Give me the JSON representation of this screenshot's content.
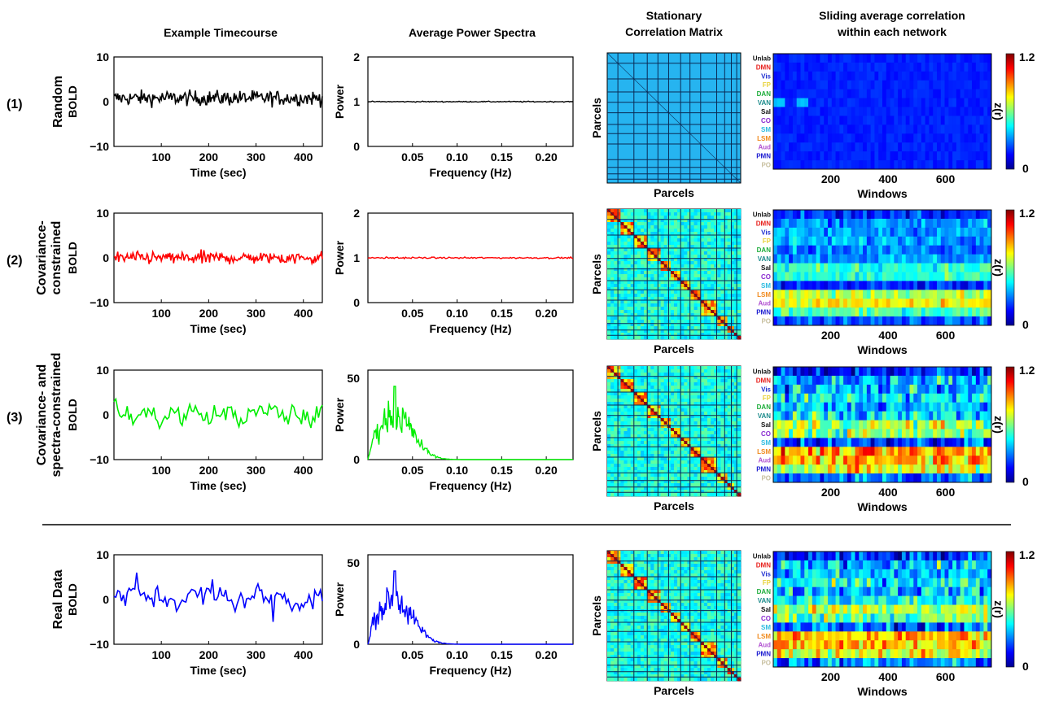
{
  "headers": {
    "timecourse": "Example Timecourse",
    "spectra": "Average Power Spectra",
    "corr_line1": "Stationary",
    "corr_line2": "Correlation Matrix",
    "slide_line1": "Sliding average correlation",
    "slide_line2": "within each network"
  },
  "labels": {
    "time_xlabel": "Time (sec)",
    "freq_xlabel": "Frequency (Hz)",
    "power_ylabel": "Power",
    "bold_ylabel": "BOLD",
    "parcels": "Parcels",
    "windows": "Windows",
    "zr": "z(r)"
  },
  "networks": [
    {
      "name": "Unlab",
      "color": "#111111"
    },
    {
      "name": "DMN",
      "color": "#e8201c"
    },
    {
      "name": "Vis",
      "color": "#1f2fd0"
    },
    {
      "name": "FP",
      "color": "#e8d23a"
    },
    {
      "name": "DAN",
      "color": "#1fae3c"
    },
    {
      "name": "VAN",
      "color": "#1d8c8c"
    },
    {
      "name": "Sal",
      "color": "#111111"
    },
    {
      "name": "CO",
      "color": "#8a2bd0"
    },
    {
      "name": "SM",
      "color": "#2bbbe0"
    },
    {
      "name": "LSM",
      "color": "#f08a1c"
    },
    {
      "name": "Aud",
      "color": "#b04fd0"
    },
    {
      "name": "PMN",
      "color": "#1a1ad0"
    },
    {
      "name": "PO",
      "color": "#c8c0a0"
    }
  ],
  "rows": [
    {
      "number": "(1)",
      "label_line1": "Random",
      "label_line2": "",
      "color": "#000000",
      "spectrum": "flat"
    },
    {
      "number": "(2)",
      "label_line1": "Covariance-",
      "label_line2": "constrained",
      "color": "#ff0000",
      "spectrum": "flat"
    },
    {
      "number": "(3)",
      "label_line1": "Covariance- and",
      "label_line2": "spectra-constrained",
      "color": "#00ee00",
      "spectrum": "peaked"
    },
    {
      "number": "",
      "label_line1": "Real Data",
      "label_line2": "",
      "color": "#0000ff",
      "spectrum": "peaked"
    }
  ],
  "chart_data": [
    {
      "type": "line",
      "panel": "Example Timecourse",
      "xlabel": "Time (sec)",
      "ylabel": "BOLD",
      "xlim": [
        0,
        440
      ],
      "ylim": [
        -10,
        10
      ],
      "xticks": [
        100,
        200,
        300,
        400
      ],
      "yticks": [
        -10,
        0,
        10
      ],
      "series": [
        {
          "name": "Random",
          "color": "#000000",
          "mean": 0.8,
          "amplitude": 1.2
        },
        {
          "name": "Covariance-constrained",
          "color": "#ff0000",
          "mean": 0.0,
          "amplitude": 1.0
        },
        {
          "name": "Covariance- and spectra-constrained",
          "color": "#00ee00",
          "mean": 0.0,
          "amplitude": 2.0
        },
        {
          "name": "Real Data",
          "color": "#0000ff",
          "mean": 0.5,
          "amplitude": 2.0
        }
      ]
    },
    {
      "type": "line",
      "panel": "Average Power Spectra",
      "xlabel": "Frequency (Hz)",
      "ylabel": "Power",
      "xlim": [
        0,
        0.23
      ],
      "xticks": [
        0.05,
        0.1,
        0.15,
        0.2
      ],
      "rows_flat": {
        "ylim": [
          0,
          2
        ],
        "yticks": [
          0,
          1,
          2
        ],
        "level": 1
      },
      "rows_peaked": {
        "ylim": [
          0,
          55
        ],
        "yticks": [
          0,
          50
        ],
        "peak_value": 45,
        "peak_freq": 0.03,
        "cutoff_freq": 0.12
      }
    },
    {
      "type": "heatmap",
      "panel": "Stationary Correlation Matrix",
      "xlabel": "Parcels",
      "ylabel": "Parcels",
      "network_blocks": 13
    },
    {
      "type": "heatmap",
      "panel": "Sliding average correlation within each network",
      "xlabel": "Windows",
      "ylabel_ticks": [
        "Unlab",
        "DMN",
        "Vis",
        "FP",
        "DAN",
        "VAN",
        "Sal",
        "CO",
        "SM",
        "LSM",
        "Aud",
        "PMN",
        "PO"
      ],
      "xlim": [
        0,
        760
      ],
      "xticks": [
        200,
        400,
        600
      ],
      "colorbar": {
        "label": "z(r)",
        "range": [
          0,
          1.2
        ],
        "ticks": [
          0,
          1.2
        ]
      }
    }
  ]
}
